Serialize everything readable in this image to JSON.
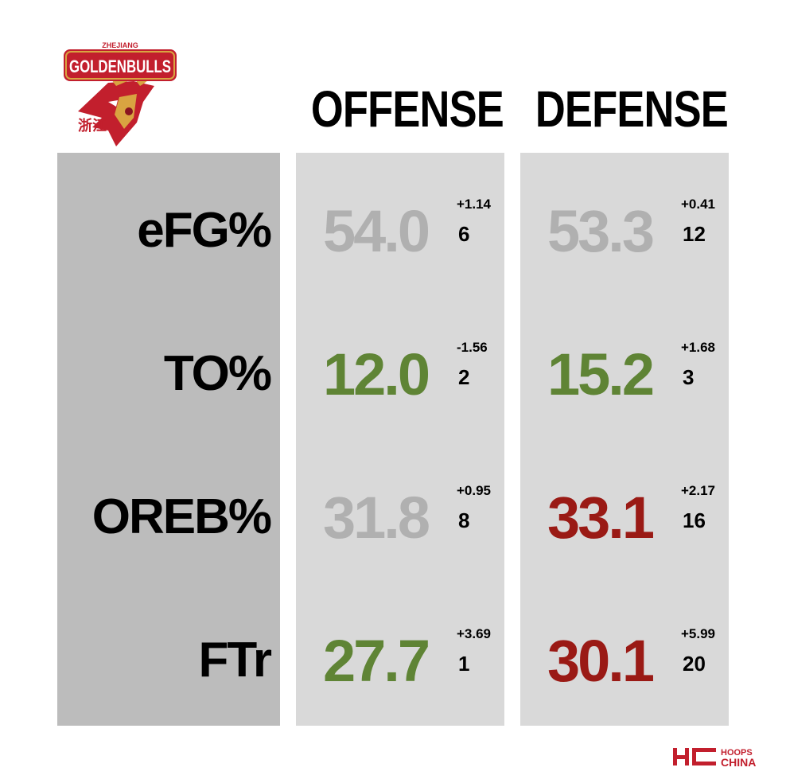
{
  "logo": {
    "top_text": "ZHEJIANG",
    "name": "GOLDENBULLS",
    "chinese": "浙江"
  },
  "columns": {
    "offense": "OFFENSE",
    "defense": "DEFENSE"
  },
  "colors": {
    "label_column": "#bcbcbc",
    "data_column": "#d9d9d9",
    "neutral": "#b0b0b0",
    "good": "#5f8435",
    "bad": "#9a1a15",
    "brand_red": "#c21f2d",
    "brand_gold": "#d9a441"
  },
  "chart_data": {
    "type": "table",
    "columns": [
      "OFFENSE",
      "DEFENSE"
    ],
    "rows": [
      {
        "label": "eFG%",
        "offense": {
          "value": "54.0",
          "delta": "+1.14",
          "rank": "6",
          "color": "neutral"
        },
        "defense": {
          "value": "53.3",
          "delta": "+0.41",
          "rank": "12",
          "color": "neutral"
        }
      },
      {
        "label": "TO%",
        "offense": {
          "value": "12.0",
          "delta": "-1.56",
          "rank": "2",
          "color": "good"
        },
        "defense": {
          "value": "15.2",
          "delta": "+1.68",
          "rank": "3",
          "color": "good"
        }
      },
      {
        "label": "OREB%",
        "offense": {
          "value": "31.8",
          "delta": "+0.95",
          "rank": "8",
          "color": "neutral"
        },
        "defense": {
          "value": "33.1",
          "delta": "+2.17",
          "rank": "16",
          "color": "bad"
        }
      },
      {
        "label": "FTr",
        "offense": {
          "value": "27.7",
          "delta": "+3.69",
          "rank": "1",
          "color": "good"
        },
        "defense": {
          "value": "30.1",
          "delta": "+5.99",
          "rank": "20",
          "color": "bad"
        }
      }
    ]
  },
  "footer": {
    "brand_top": "HOOPS",
    "brand_bottom": "CHINA"
  }
}
